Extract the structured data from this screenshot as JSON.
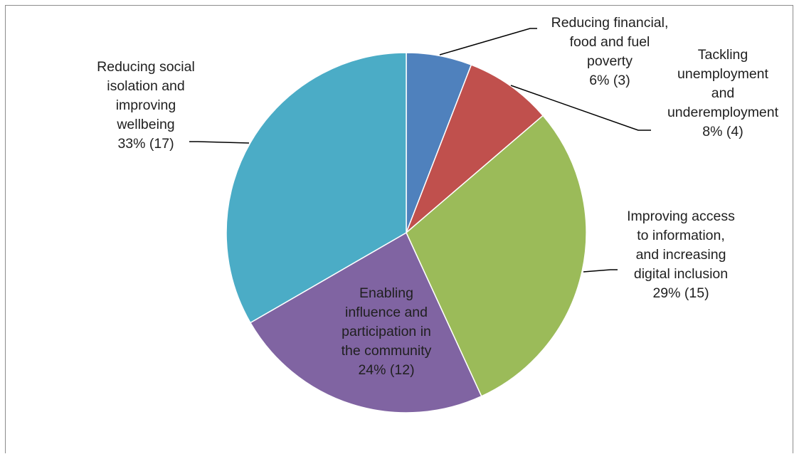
{
  "chart_data": {
    "type": "pie",
    "title": "",
    "slices": [
      {
        "name": "Reducing financial, food and fuel poverty",
        "label_lines": [
          "Reducing financial,",
          "food and fuel",
          "poverty"
        ],
        "value": 3,
        "percent_label": "6% (3)",
        "color": "#4F81BD"
      },
      {
        "name": "Tackling unemployment and underemployment",
        "label_lines": [
          "Tackling",
          "unemployment",
          "and",
          "underemployment"
        ],
        "value": 4,
        "percent_label": "8% (4)",
        "color": "#C0504D"
      },
      {
        "name": "Improving access to information, and increasing digital inclusion",
        "label_lines": [
          "Improving access",
          "to information,",
          "and increasing",
          "digital inclusion"
        ],
        "value": 15,
        "percent_label": "29% (15)",
        "color": "#9BBB59"
      },
      {
        "name": "Enabling influence and participation in the community",
        "label_lines": [
          "Enabling",
          "influence and",
          "participation in",
          "the community"
        ],
        "value": 12,
        "percent_label": "24% (12)",
        "color": "#8064A2"
      },
      {
        "name": "Reducing social isolation and improving wellbeing",
        "label_lines": [
          "Reducing social",
          "isolation and",
          "improving",
          "wellbeing"
        ],
        "value": 17,
        "percent_label": "33% (17)",
        "color": "#4BACC6"
      }
    ],
    "legend": "none"
  }
}
